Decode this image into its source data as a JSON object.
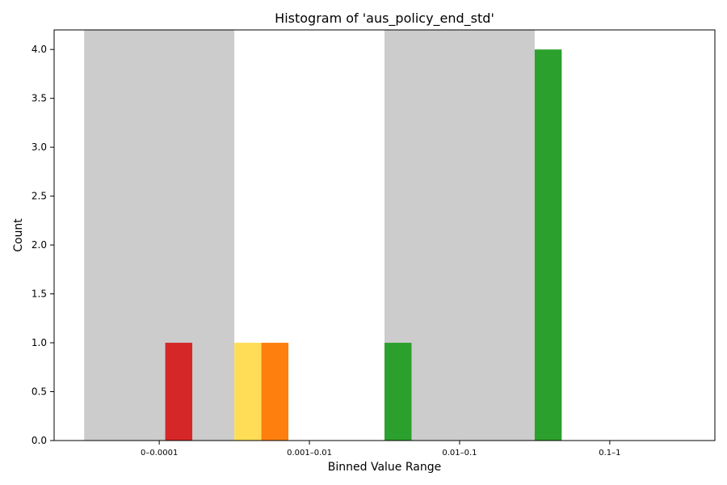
{
  "chart_data": {
    "type": "bar",
    "title": "Histogram of 'aus_policy_end_std'",
    "xlabel": "Binned Value Range",
    "ylabel": "Count",
    "categories": [
      "0–0.0001",
      "0.001–0.01",
      "0.01–0.1",
      "0.1–1"
    ],
    "ylim": [
      0,
      4.2
    ],
    "yticks": [
      "0.0",
      "0.5",
      "1.0",
      "1.5",
      "2.0",
      "2.5",
      "3.0",
      "3.5",
      "4.0"
    ],
    "grid": false,
    "shaded_categories": [
      0,
      2
    ],
    "shade_color": "#cccccc",
    "bars": [
      {
        "category": 0,
        "slot": 3,
        "value": 1,
        "color": "#d62728"
      },
      {
        "category": 1,
        "slot": 0,
        "value": 1,
        "color": "#ffdd57"
      },
      {
        "category": 1,
        "slot": 1,
        "value": 1,
        "color": "#ff7f0e"
      },
      {
        "category": 2,
        "slot": 0,
        "value": 1,
        "color": "#2ca02c"
      },
      {
        "category": 3,
        "slot": 0,
        "value": 4,
        "color": "#2ca02c"
      }
    ]
  }
}
